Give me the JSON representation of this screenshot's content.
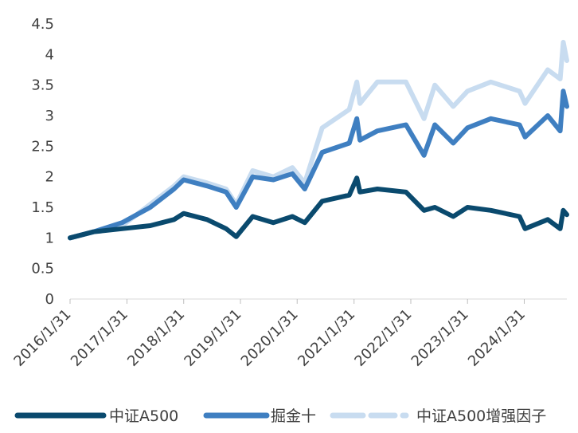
{
  "chart_data": {
    "type": "line",
    "title": "",
    "xlabel": "",
    "ylabel": "",
    "ylim": [
      0,
      4.5
    ],
    "y_ticks": [
      "0",
      "0.5",
      "1",
      "1.5",
      "2",
      "2.5",
      "3",
      "3.5",
      "4",
      "4.5"
    ],
    "x_ticks": [
      "2016/1/31",
      "2017/1/31",
      "2018/1/31",
      "2019/1/31",
      "2020/1/31",
      "2021/1/31",
      "2022/1/31",
      "2023/1/31",
      "2024/1/31"
    ],
    "x_range": [
      "2016/1/31",
      "2024/10/31"
    ],
    "grid": false,
    "legend_position": "bottom",
    "series": [
      {
        "name": "中证A500",
        "color": "#0a4a6e",
        "dash": "solid",
        "x": [
          "2016/1/31",
          "2016/6/30",
          "2016/12/31",
          "2017/6/30",
          "2017/11/30",
          "2018/1/31",
          "2018/6/30",
          "2018/10/31",
          "2019/1/4",
          "2019/4/20",
          "2019/8/31",
          "2019/12/31",
          "2020/3/20",
          "2020/7/10",
          "2020/12/31",
          "2021/2/18",
          "2021/3/10",
          "2021/6/30",
          "2021/12/31",
          "2022/4/26",
          "2022/7/5",
          "2022/10/31",
          "2023/1/31",
          "2023/6/30",
          "2023/12/31",
          "2024/2/5",
          "2024/6/30",
          "2024/9/18",
          "2024/10/8",
          "2024/10/31"
        ],
        "y": [
          1.0,
          1.1,
          1.15,
          1.2,
          1.3,
          1.4,
          1.3,
          1.15,
          1.02,
          1.35,
          1.25,
          1.35,
          1.25,
          1.6,
          1.7,
          1.98,
          1.75,
          1.8,
          1.75,
          1.45,
          1.5,
          1.35,
          1.5,
          1.45,
          1.35,
          1.15,
          1.3,
          1.15,
          1.45,
          1.38
        ]
      },
      {
        "name": "掘金十",
        "color": "#3f7fc1",
        "dash": "solid",
        "x": [
          "2016/1/31",
          "2016/6/30",
          "2016/12/31",
          "2017/6/30",
          "2017/11/30",
          "2018/1/31",
          "2018/6/30",
          "2018/10/31",
          "2019/1/4",
          "2019/4/20",
          "2019/8/31",
          "2019/12/31",
          "2020/3/20",
          "2020/7/10",
          "2020/12/31",
          "2021/2/18",
          "2021/3/10",
          "2021/6/30",
          "2021/12/31",
          "2022/4/26",
          "2022/7/5",
          "2022/10/31",
          "2023/1/31",
          "2023/6/30",
          "2023/12/31",
          "2024/2/5",
          "2024/6/30",
          "2024/9/18",
          "2024/10/8",
          "2024/10/31"
        ],
        "y": [
          1.0,
          1.1,
          1.25,
          1.5,
          1.8,
          1.95,
          1.85,
          1.75,
          1.5,
          2.0,
          1.95,
          2.05,
          1.8,
          2.4,
          2.55,
          2.95,
          2.6,
          2.75,
          2.85,
          2.35,
          2.85,
          2.55,
          2.8,
          2.95,
          2.85,
          2.65,
          3.0,
          2.75,
          3.4,
          3.15
        ]
      },
      {
        "name": "中证A500增强因子",
        "color": "#c8dcf0",
        "dash": "dashed",
        "x": [
          "2016/1/31",
          "2016/6/30",
          "2016/12/31",
          "2017/6/30",
          "2017/11/30",
          "2018/1/31",
          "2018/6/30",
          "2018/10/31",
          "2019/1/4",
          "2019/4/20",
          "2019/8/31",
          "2019/12/31",
          "2020/3/20",
          "2020/7/10",
          "2020/12/31",
          "2021/2/18",
          "2021/3/10",
          "2021/6/30",
          "2021/12/31",
          "2022/4/26",
          "2022/7/5",
          "2022/10/31",
          "2023/1/31",
          "2023/6/30",
          "2023/12/31",
          "2024/2/5",
          "2024/6/30",
          "2024/9/18",
          "2024/10/8",
          "2024/10/31"
        ],
        "y": [
          1.0,
          1.1,
          1.2,
          1.55,
          1.85,
          2.0,
          1.9,
          1.8,
          1.55,
          2.1,
          2.0,
          2.15,
          1.9,
          2.8,
          3.1,
          3.55,
          3.2,
          3.55,
          3.55,
          2.95,
          3.5,
          3.15,
          3.4,
          3.55,
          3.4,
          3.2,
          3.75,
          3.6,
          4.2,
          3.9
        ]
      }
    ]
  }
}
